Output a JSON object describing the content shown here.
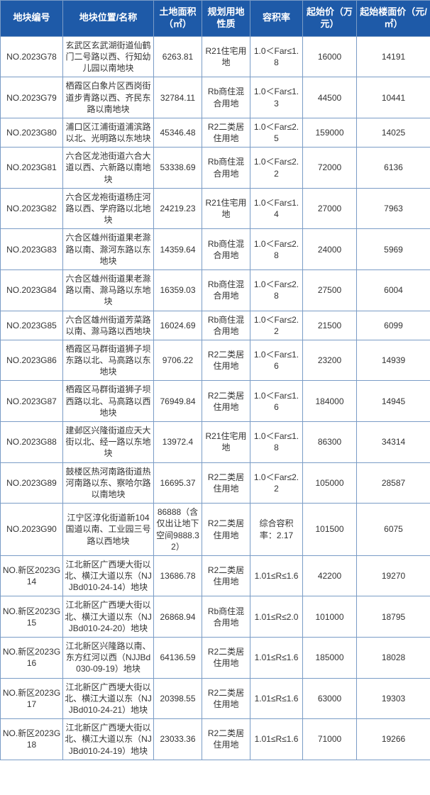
{
  "table": {
    "header_bg": "#1e5aa8",
    "header_color": "#ffffff",
    "border_color": "#7a9cc6",
    "cell_color": "#333333",
    "columns": [
      "地块编号",
      "地块位置/名称",
      "土地面积（㎡）",
      "规划用地性质",
      "容积率",
      "起始价（万元）",
      "起始楼面价（元/㎡）"
    ],
    "rows": [
      [
        "NO.2023G78",
        "玄武区玄武湖街道仙鹤门二号路以西、行知幼儿园以南地块",
        "6263.81",
        "R21住宅用地",
        "1.0＜Far≤1.8",
        "16000",
        "14191"
      ],
      [
        "NO.2023G79",
        "栖霞区白象片区西岗街道步青路以西、齐民东路以南地块",
        "32784.11",
        "Rb商住混合用地",
        "1.0＜Far≤1.3",
        "44500",
        "10441"
      ],
      [
        "NO.2023G80",
        "浦口区江浦街道浦滨路以北、光明路以东地块",
        "45346.48",
        "R2二类居住用地",
        "1.0＜Far≤2.5",
        "159000",
        "14025"
      ],
      [
        "NO.2023G81",
        "六合区龙池街道六合大道以西、六新路以南地块",
        "53338.69",
        "Rb商住混合用地",
        "1.0＜Far≤2.2",
        "72000",
        "6136"
      ],
      [
        "NO.2023G82",
        "六合区龙袍街道杨庄河路以西、学府路以北地块",
        "24219.23",
        "R21住宅用地",
        "1.0＜Far≤1.4",
        "27000",
        "7963"
      ],
      [
        "NO.2023G83",
        "六合区雄州街道果老滁路以南、滁河东路以东地块",
        "14359.64",
        "Rb商住混合用地",
        "1.0＜Far≤2.8",
        "24000",
        "5969"
      ],
      [
        "NO.2023G84",
        "六合区雄州街道果老滁路以南、滁马路以东地块",
        "16359.03",
        "Rb商住混合用地",
        "1.0＜Far≤2.8",
        "27500",
        "6004"
      ],
      [
        "NO.2023G85",
        "六合区雄州街道芳菜路以南、滁马路以西地块",
        "16024.69",
        "Rb商住混合用地",
        "1.0＜Far≤2.2",
        "21500",
        "6099"
      ],
      [
        "NO.2023G86",
        "栖霞区马群街道狮子坝东路以北、马高路以东地块",
        "9706.22",
        "R2二类居住用地",
        "1.0＜Far≤1.6",
        "23200",
        "14939"
      ],
      [
        "NO.2023G87",
        "栖霞区马群街道狮子坝西路以北、马高路以西地块",
        "76949.84",
        "R2二类居住用地",
        "1.0＜Far≤1.6",
        "184000",
        "14945"
      ],
      [
        "NO.2023G88",
        "建邺区兴隆街道应天大街以北、经一路以东地块",
        "13972.4",
        "R21住宅用地",
        "1.0＜Far≤1.8",
        "86300",
        "34314"
      ],
      [
        "NO.2023G89",
        "鼓楼区热河南路街道热河南路以东、察哈尔路以南地块",
        "16695.37",
        "R2二类居住用地",
        "1.0＜Far≤2.2",
        "105000",
        "28587"
      ],
      [
        "NO.2023G90",
        "江宁区淳化街道新104国道以南、工业园三号路以西地块",
        "86888（含仅出让地下空间9888.32）",
        "R2二类居住用地",
        "综合容积率：2.17",
        "101500",
        "6075"
      ],
      [
        "NO.新区2023G14",
        "江北新区广西埂大街以北、横江大道以东（NJJBd010-24-14）地块",
        "13686.78",
        "R2二类居住用地",
        "1.01≤R≤1.6",
        "42200",
        "19270"
      ],
      [
        "NO.新区2023G15",
        "江北新区广西埂大街以北、横江大道以东（NJJBd010-24-20）地块",
        "26868.94",
        "Rb商住混合用地",
        "1.01≤R≤2.0",
        "101000",
        "18795"
      ],
      [
        "NO.新区2023G16",
        "江北新区兴隆路以南、东方红河以西（NJJBd030-09-19）地块",
        "64136.59",
        "R2二类居住用地",
        "1.01≤R≤1.6",
        "185000",
        "18028"
      ],
      [
        "NO.新区2023G17",
        "江北新区广西埂大街以北、横江大道以东（NJJBd010-24-21）地块",
        "20398.55",
        "R2二类居住用地",
        "1.01≤R≤1.6",
        "63000",
        "19303"
      ],
      [
        "NO.新区2023G18",
        "江北新区广西埂大街以北、横江大道以东（NJJBd010-24-19）地块",
        "23033.36",
        "R2二类居住用地",
        "1.01≤R≤1.6",
        "71000",
        "19266"
      ]
    ]
  }
}
